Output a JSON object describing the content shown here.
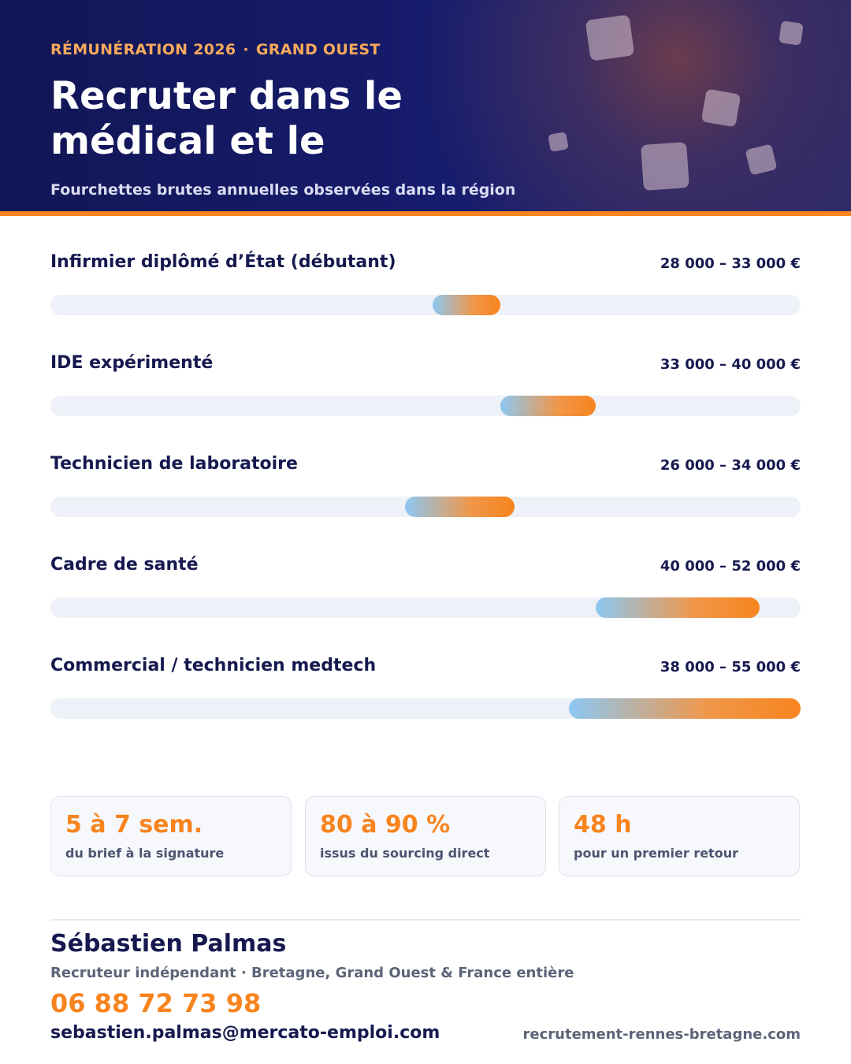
{
  "header": {
    "eyebrow_left": "RÉMUNÉRATION 2026",
    "eyebrow_separator": "·",
    "eyebrow_right": "GRAND OUEST",
    "title": "Recruter dans le médical et le",
    "subtitle": "Fourchettes brutes annuelles observées dans la région"
  },
  "salaries": [
    {
      "label": "Infirmier diplômé d’État (débutant)",
      "range": "28 000 – 33 000 €",
      "min": 28000,
      "max": 33000
    },
    {
      "label": "IDE expérimenté",
      "range": "33 000 – 40 000 €",
      "min": 33000,
      "max": 40000
    },
    {
      "label": "Technicien de laboratoire",
      "range": "26 000 – 34 000 €",
      "min": 26000,
      "max": 34000
    },
    {
      "label": "Cadre de santé",
      "range": "40 000 – 52 000 €",
      "min": 40000,
      "max": 52000
    },
    {
      "label": "Commercial / technicien medtech",
      "range": "38 000 – 55 000 €",
      "min": 38000,
      "max": 55000
    }
  ],
  "stats": [
    {
      "value": "5 à 7 sem.",
      "label": "du brief à la signature"
    },
    {
      "value": "80 à 90 %",
      "label": "issus du sourcing direct"
    },
    {
      "value": "48 h",
      "label": "pour un premier retour"
    }
  ],
  "contact": {
    "name": "Sébastien Palmas",
    "role": "Recruteur indépendant · Bretagne, Grand Ouest & France entière",
    "phone": "06 88 72 73 98",
    "email": "sebastien.palmas@mercato-emploi.com",
    "website": "recrutement-rennes-bretagne.com"
  },
  "colors": {
    "accent": "#f7841e",
    "navy": "#16194f",
    "track": "#eef1f7",
    "bar_start": "#8cc8f3"
  }
}
